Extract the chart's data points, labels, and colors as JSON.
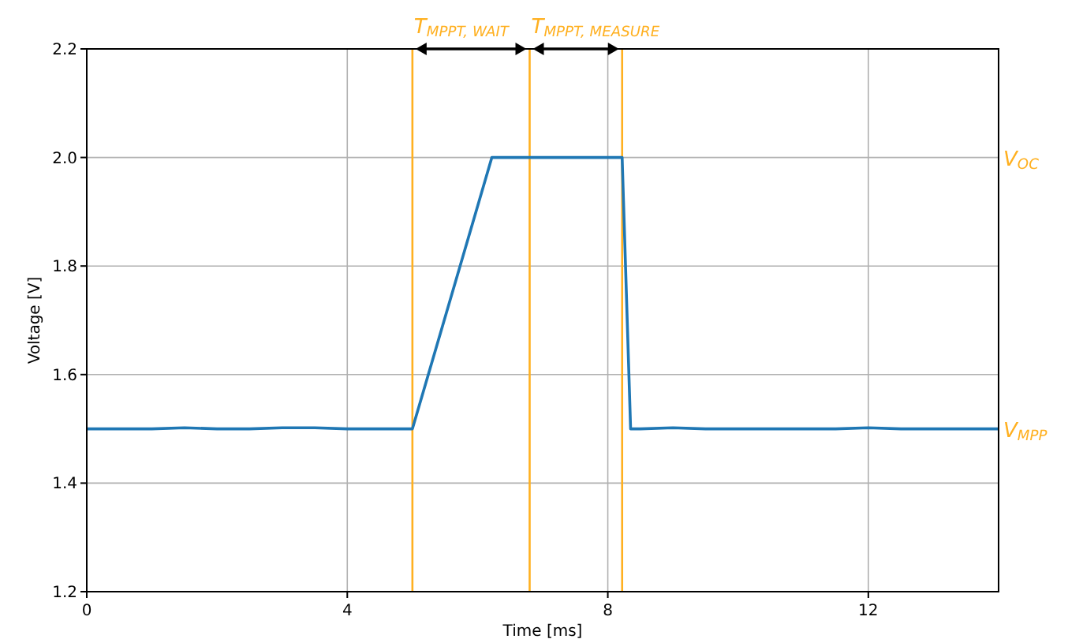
{
  "chart_data": {
    "type": "line",
    "xlabel": "Time [ms]",
    "ylabel": "Voltage [V]",
    "x": [
      0,
      0.5,
      1,
      1.5,
      2,
      2.5,
      3,
      3.5,
      4,
      4.5,
      5,
      6.22,
      7,
      8,
      8.22,
      8.35,
      8.5,
      9,
      9.5,
      10,
      10.5,
      11,
      11.5,
      12,
      12.5,
      13,
      13.5,
      14
    ],
    "series": [
      {
        "color": "#1f77b4",
        "values": [
          1.5,
          1.5,
          1.5,
          1.502,
          1.5,
          1.5,
          1.502,
          1.502,
          1.5,
          1.5,
          1.5,
          2.0,
          2.0,
          2.0,
          2.0,
          1.5,
          1.5,
          1.502,
          1.5,
          1.5,
          1.5,
          1.5,
          1.5,
          1.502,
          1.5,
          1.5,
          1.5,
          1.5
        ]
      }
    ],
    "xlim": [
      0,
      14
    ],
    "xticks": [
      0,
      4,
      8,
      12
    ],
    "ylim": [
      1.2,
      2.2
    ],
    "yticks": [
      1.2,
      1.4,
      1.6,
      1.8,
      {
        "value": 2,
        "label": "2.0"
      },
      2.2
    ],
    "ref_lines": [
      {
        "axis": "x",
        "value": 5,
        "color": "#ffb020"
      },
      {
        "axis": "x",
        "value": 6.8,
        "color": "#ffb020"
      },
      {
        "axis": "x",
        "value": 8.22,
        "color": "#ffb020"
      }
    ],
    "annotations": [
      {
        "text": "T$_{MPPT, WAIT}$",
        "x": 5,
        "y": 2.2
      },
      {
        "text": "T$_{MPPT, MEASURE}$",
        "x": 6.8,
        "y": 2.2
      },
      "V$_{OC}$",
      {
        "text": "V$_{MPP}$",
        "x": 14,
        "y": 1.5
      }
    ],
    "grid": true,
    "marker": "none",
    "line_style": "solid"
  }
}
